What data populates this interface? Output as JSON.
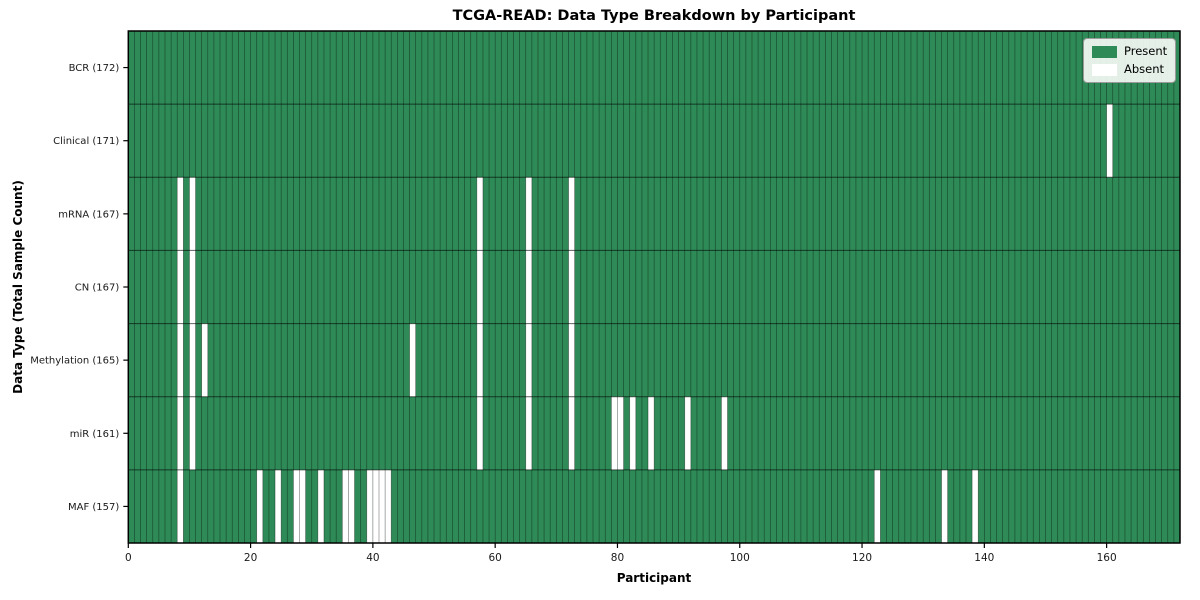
{
  "title": "TCGA-READ: Data Type Breakdown by Participant",
  "xlabel": "Participant",
  "ylabel": "Data Type (Total Sample Count)",
  "legend": {
    "items": [
      {
        "label": "Present",
        "color": "#2e8b57"
      },
      {
        "label": "Absent",
        "color": "#ffffff"
      }
    ]
  },
  "colors": {
    "present": "#2e8b57",
    "absent": "#ffffff",
    "cell_grid": "rgba(0,0,0,0.45)",
    "row_grid": "rgba(0,0,0,0.6)",
    "spine": "#000000"
  },
  "chart_data": {
    "type": "heatmap",
    "title": "TCGA-READ: Data Type Breakdown by Participant",
    "xlabel": "Participant",
    "ylabel": "Data Type (Total Sample Count)",
    "legend_entries": [
      "Present",
      "Absent"
    ],
    "legend_position": "upper right",
    "n_participants": 172,
    "x_range": [
      0,
      172
    ],
    "x_ticks": [
      0,
      20,
      40,
      60,
      80,
      100,
      120,
      140,
      160
    ],
    "value_encoding": {
      "present": "green cell",
      "absent": "white cell"
    },
    "rows": [
      {
        "label": "BCR (172)",
        "total": 172,
        "absent_participants": []
      },
      {
        "label": "Clinical (171)",
        "total": 171,
        "absent_participants": [
          160
        ]
      },
      {
        "label": "mRNA (167)",
        "total": 167,
        "absent_participants": [
          8,
          10,
          57,
          65,
          72
        ]
      },
      {
        "label": "CN (167)",
        "total": 167,
        "absent_participants": [
          8,
          10,
          57,
          65,
          72
        ]
      },
      {
        "label": "Methylation (165)",
        "total": 165,
        "absent_participants": [
          8,
          10,
          12,
          46,
          57,
          65,
          72
        ]
      },
      {
        "label": "miR (161)",
        "total": 161,
        "absent_participants": [
          8,
          10,
          57,
          65,
          72,
          79,
          80,
          82,
          85,
          91,
          97
        ]
      },
      {
        "label": "MAF (157)",
        "total": 157,
        "absent_participants": [
          8,
          21,
          24,
          27,
          28,
          31,
          35,
          36,
          39,
          40,
          41,
          42,
          122,
          133,
          138
        ]
      }
    ]
  }
}
